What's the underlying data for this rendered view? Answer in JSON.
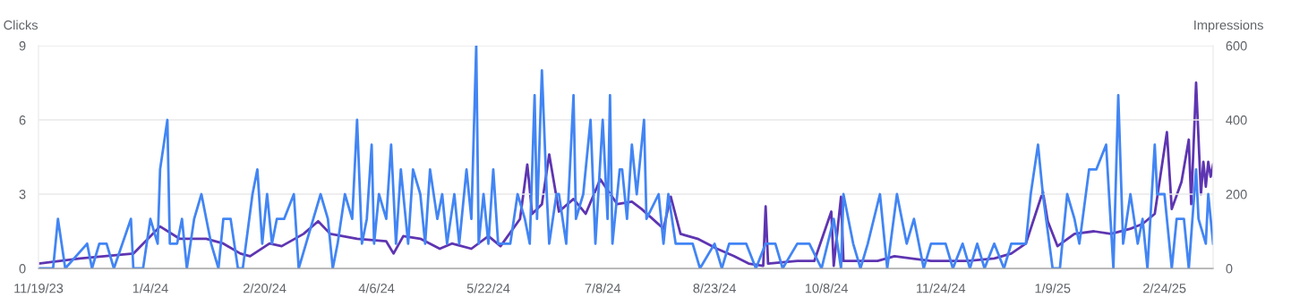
{
  "chart_data": {
    "type": "line",
    "ylabel": "Clicks",
    "y2label": "Impressions",
    "grid": "y",
    "marker": "none",
    "line_style": "solid",
    "xlim": [
      "2023-11-19",
      "2025-03-16"
    ],
    "xticks": [
      {
        "value": "2023-11-19",
        "label": "11/19/23"
      },
      {
        "value": "2024-01-04",
        "label": "1/4/24"
      },
      {
        "value": "2024-02-20",
        "label": "2/20/24"
      },
      {
        "value": "2024-04-06",
        "label": "4/6/24"
      },
      {
        "value": "2024-05-22",
        "label": "5/22/24"
      },
      {
        "value": "2024-07-08",
        "label": "7/8/24"
      },
      {
        "value": "2024-08-23",
        "label": "8/23/24"
      },
      {
        "value": "2024-10-08",
        "label": "10/8/24"
      },
      {
        "value": "2024-11-24",
        "label": "11/24/24"
      },
      {
        "value": "2025-01-09",
        "label": "1/9/25"
      },
      {
        "value": "2025-02-24",
        "label": "2/24/25"
      }
    ],
    "ylim": [
      0,
      9
    ],
    "yticks": [
      0,
      3,
      6,
      9
    ],
    "y2lim": [
      0,
      600
    ],
    "y2ticks": [
      0,
      200,
      400,
      600
    ],
    "series": [
      {
        "color": "#5e35b1",
        "axis": "y2",
        "x": [
          "2023-11-19",
          "2023-12-06",
          "2023-12-28",
          "2024-01-08",
          "2024-01-16",
          "2024-01-27",
          "2024-02-03",
          "2024-02-10",
          "2024-02-14",
          "2024-02-22",
          "2024-02-27",
          "2024-03-07",
          "2024-03-13",
          "2024-03-18",
          "2024-03-29",
          "2024-04-10",
          "2024-04-13",
          "2024-04-17",
          "2024-04-24",
          "2024-05-02",
          "2024-05-07",
          "2024-05-15",
          "2024-05-22",
          "2024-05-27",
          "2024-06-04",
          "2024-06-07",
          "2024-06-09",
          "2024-06-13",
          "2024-06-16",
          "2024-06-20",
          "2024-06-26",
          "2024-07-01",
          "2024-07-07",
          "2024-07-14",
          "2024-07-20",
          "2024-07-24",
          "2024-08-02",
          "2024-08-05",
          "2024-08-09",
          "2024-08-16",
          "2024-08-24",
          "2024-08-31",
          "2024-09-06",
          "2024-09-12",
          "2024-09-13",
          "2024-09-14",
          "2024-09-26",
          "2024-10-03",
          "2024-10-10",
          "2024-10-11",
          "2024-10-14",
          "2024-10-15",
          "2024-10-29",
          "2024-11-05",
          "2024-11-20",
          "2024-12-05",
          "2024-12-16",
          "2024-12-23",
          "2024-12-29",
          "2025-01-03",
          "2025-01-05",
          "2025-01-07",
          "2025-01-11",
          "2025-01-18",
          "2025-01-26",
          "2025-02-02",
          "2025-02-10",
          "2025-02-15",
          "2025-02-20",
          "2025-02-25",
          "2025-02-27",
          "2025-03-03",
          "2025-03-06",
          "2025-03-07",
          "2025-03-09",
          "2025-03-11",
          "2025-03-12",
          "2025-03-13",
          "2025-03-14",
          "2025-03-15",
          "2025-03-16"
        ],
        "values": [
          13,
          27,
          40,
          113,
          80,
          80,
          67,
          40,
          33,
          67,
          60,
          93,
          127,
          93,
          80,
          73,
          40,
          87,
          80,
          53,
          67,
          53,
          87,
          60,
          133,
          280,
          147,
          173,
          307,
          153,
          187,
          147,
          240,
          173,
          180,
          160,
          107,
          193,
          93,
          80,
          53,
          33,
          13,
          7,
          167,
          13,
          20,
          20,
          153,
          7,
          193,
          20,
          20,
          33,
          20,
          20,
          27,
          40,
          67,
          167,
          207,
          127,
          60,
          93,
          100,
          93,
          107,
          120,
          147,
          367,
          160,
          233,
          347,
          173,
          500,
          200,
          287,
          220,
          287,
          247,
          280
        ]
      },
      {
        "color": "#4285f4",
        "axis": "y",
        "x": [
          "2023-11-19",
          "2023-11-25",
          "2023-11-27",
          "2023-11-30",
          "2023-12-09",
          "2023-12-11",
          "2023-12-14",
          "2023-12-17",
          "2023-12-20",
          "2023-12-27",
          "2023-12-28",
          "2024-01-01",
          "2024-01-04",
          "2024-01-07",
          "2024-01-08",
          "2024-01-11",
          "2024-01-12",
          "2024-01-15",
          "2024-01-17",
          "2024-01-19",
          "2024-01-22",
          "2024-01-25",
          "2024-01-27",
          "2024-01-29",
          "2024-02-01",
          "2024-02-03",
          "2024-02-06",
          "2024-02-09",
          "2024-02-11",
          "2024-02-15",
          "2024-02-17",
          "2024-02-19",
          "2024-02-21",
          "2024-02-23",
          "2024-02-25",
          "2024-02-28",
          "2024-03-03",
          "2024-03-05",
          "2024-03-08",
          "2024-03-11",
          "2024-03-14",
          "2024-03-17",
          "2024-03-19",
          "2024-03-21",
          "2024-03-24",
          "2024-03-27",
          "2024-03-29",
          "2024-03-31",
          "2024-04-02",
          "2024-04-04",
          "2024-04-05",
          "2024-04-07",
          "2024-04-10",
          "2024-04-12",
          "2024-04-14",
          "2024-04-16",
          "2024-04-19",
          "2024-04-21",
          "2024-04-24",
          "2024-04-26",
          "2024-04-28",
          "2024-05-01",
          "2024-05-03",
          "2024-05-05",
          "2024-05-08",
          "2024-05-10",
          "2024-05-13",
          "2024-05-15",
          "2024-05-17",
          "2024-05-18",
          "2024-05-20",
          "2024-05-22",
          "2024-05-24",
          "2024-05-26",
          "2024-05-28",
          "2024-05-31",
          "2024-06-03",
          "2024-06-06",
          "2024-06-08",
          "2024-06-10",
          "2024-06-11",
          "2024-06-13",
          "2024-06-15",
          "2024-06-16",
          "2024-06-19",
          "2024-06-20",
          "2024-06-23",
          "2024-06-26",
          "2024-06-27",
          "2024-06-30",
          "2024-07-03",
          "2024-07-05",
          "2024-07-08",
          "2024-07-10",
          "2024-07-11",
          "2024-07-12",
          "2024-07-15",
          "2024-07-16",
          "2024-07-18",
          "2024-07-20",
          "2024-07-22",
          "2024-07-25",
          "2024-07-26",
          "2024-07-31",
          "2024-08-02",
          "2024-08-04",
          "2024-08-07",
          "2024-08-10",
          "2024-08-14",
          "2024-08-17",
          "2024-08-23",
          "2024-08-26",
          "2024-08-29",
          "2024-09-02",
          "2024-09-05",
          "2024-09-09",
          "2024-09-13",
          "2024-09-17",
          "2024-09-20",
          "2024-09-26",
          "2024-10-01",
          "2024-10-06",
          "2024-10-11",
          "2024-10-14",
          "2024-10-15",
          "2024-10-19",
          "2024-10-22",
          "2024-10-25",
          "2024-10-30",
          "2024-11-02",
          "2024-11-06",
          "2024-11-10",
          "2024-11-13",
          "2024-11-17",
          "2024-11-20",
          "2024-11-26",
          "2024-11-29",
          "2024-12-03",
          "2024-12-06",
          "2024-12-09",
          "2024-12-12",
          "2024-12-16",
          "2024-12-20",
          "2024-12-23",
          "2024-12-29",
          "2024-12-31",
          "2025-01-03",
          "2025-01-05",
          "2025-01-09",
          "2025-01-12",
          "2025-01-15",
          "2025-01-18",
          "2025-01-20",
          "2025-01-24",
          "2025-01-27",
          "2025-01-31",
          "2025-02-03",
          "2025-02-05",
          "2025-02-07",
          "2025-02-10",
          "2025-02-13",
          "2025-02-15",
          "2025-02-17",
          "2025-02-20",
          "2025-02-21",
          "2025-02-24",
          "2025-02-27",
          "2025-03-01",
          "2025-03-04",
          "2025-03-06",
          "2025-03-09",
          "2025-03-10",
          "2025-03-13",
          "2025-03-14",
          "2025-03-16"
        ],
        "values": [
          0,
          0,
          2,
          0,
          1,
          0,
          1,
          1,
          0,
          2,
          0,
          0,
          2,
          1,
          4,
          6,
          1,
          1,
          2,
          0,
          2,
          3,
          2,
          1,
          0,
          2,
          2,
          0,
          0,
          3,
          4,
          1,
          3,
          1,
          2,
          2,
          3,
          0,
          1,
          2,
          3,
          2,
          0,
          1,
          3,
          2,
          6,
          1,
          2,
          5,
          1,
          3,
          2,
          5,
          1,
          4,
          1,
          4,
          3,
          1,
          4,
          2,
          3,
          1,
          3,
          1,
          4,
          2,
          9,
          1,
          3,
          1,
          4,
          1,
          1,
          1,
          3,
          2,
          1,
          7,
          2,
          8,
          3,
          1,
          3,
          3,
          1,
          7,
          2,
          3,
          6,
          1,
          6,
          2,
          7,
          1,
          4,
          4,
          2,
          5,
          3,
          6,
          2,
          3,
          1,
          3,
          1,
          1,
          1,
          0,
          1,
          0,
          1,
          1,
          1,
          0,
          1,
          1,
          0,
          1,
          1,
          0,
          2,
          0,
          3,
          1,
          0,
          1,
          3,
          0,
          3,
          1,
          2,
          0,
          1,
          1,
          0,
          1,
          0,
          1,
          0,
          1,
          0,
          1,
          1,
          3,
          5,
          3,
          0,
          0,
          3,
          2,
          1,
          4,
          4,
          5,
          0,
          7,
          1,
          3,
          1,
          2,
          0,
          5,
          3,
          3,
          0,
          2,
          2,
          0,
          4,
          2,
          1,
          3,
          1
        ]
      }
    ]
  }
}
